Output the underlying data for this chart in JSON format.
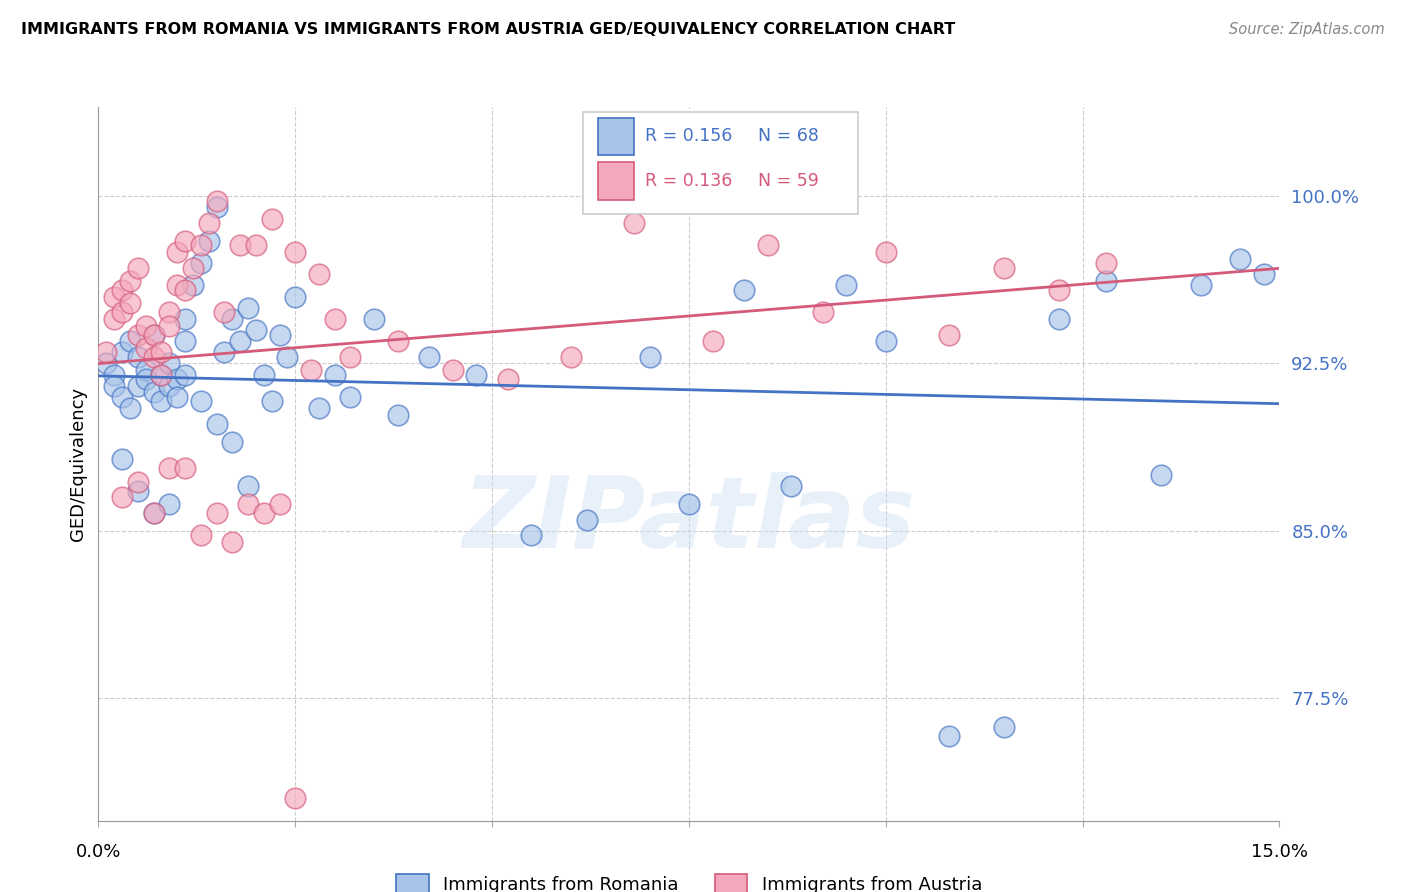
{
  "title": "IMMIGRANTS FROM ROMANIA VS IMMIGRANTS FROM AUSTRIA GED/EQUIVALENCY CORRELATION CHART",
  "source": "Source: ZipAtlas.com",
  "ylabel": "GED/Equivalency",
  "yticks": [
    0.775,
    0.85,
    0.925,
    1.0
  ],
  "ytick_labels": [
    "77.5%",
    "85.0%",
    "92.5%",
    "100.0%"
  ],
  "xlim": [
    0.0,
    0.15
  ],
  "ylim": [
    0.72,
    1.04
  ],
  "romania_color": "#a8c4e8",
  "austria_color": "#f5a8bc",
  "romania_line_color": "#4472c4",
  "austria_line_color": "#d45a7a",
  "watermark": "ZIPatlas",
  "romania_x": [
    0.001,
    0.002,
    0.002,
    0.003,
    0.003,
    0.004,
    0.004,
    0.005,
    0.005,
    0.006,
    0.006,
    0.007,
    0.007,
    0.008,
    0.008,
    0.009,
    0.009,
    0.01,
    0.01,
    0.011,
    0.011,
    0.012,
    0.013,
    0.014,
    0.015,
    0.016,
    0.017,
    0.018,
    0.019,
    0.02,
    0.021,
    0.022,
    0.023,
    0.024,
    0.025,
    0.028,
    0.03,
    0.032,
    0.035,
    0.038,
    0.042,
    0.048,
    0.055,
    0.062,
    0.07,
    0.075,
    0.082,
    0.088,
    0.095,
    0.1,
    0.108,
    0.115,
    0.122,
    0.128,
    0.135,
    0.14,
    0.145,
    0.148,
    0.003,
    0.005,
    0.007,
    0.009,
    0.011,
    0.013,
    0.015,
    0.017,
    0.019
  ],
  "romania_y": [
    0.925,
    0.92,
    0.915,
    0.93,
    0.91,
    0.935,
    0.905,
    0.928,
    0.915,
    0.922,
    0.918,
    0.938,
    0.912,
    0.92,
    0.908,
    0.925,
    0.915,
    0.918,
    0.91,
    0.935,
    0.945,
    0.96,
    0.97,
    0.98,
    0.995,
    0.93,
    0.945,
    0.935,
    0.95,
    0.94,
    0.92,
    0.908,
    0.938,
    0.928,
    0.955,
    0.905,
    0.92,
    0.91,
    0.945,
    0.902,
    0.928,
    0.92,
    0.848,
    0.855,
    0.928,
    0.862,
    0.958,
    0.87,
    0.96,
    0.935,
    0.758,
    0.762,
    0.945,
    0.962,
    0.875,
    0.96,
    0.972,
    0.965,
    0.882,
    0.868,
    0.858,
    0.862,
    0.92,
    0.908,
    0.898,
    0.89,
    0.87
  ],
  "austria_x": [
    0.001,
    0.002,
    0.002,
    0.003,
    0.003,
    0.004,
    0.004,
    0.005,
    0.005,
    0.006,
    0.006,
    0.007,
    0.007,
    0.008,
    0.008,
    0.009,
    0.009,
    0.01,
    0.01,
    0.011,
    0.011,
    0.012,
    0.013,
    0.014,
    0.015,
    0.016,
    0.018,
    0.02,
    0.022,
    0.025,
    0.028,
    0.03,
    0.032,
    0.038,
    0.045,
    0.052,
    0.06,
    0.068,
    0.078,
    0.085,
    0.092,
    0.1,
    0.108,
    0.115,
    0.122,
    0.128,
    0.003,
    0.005,
    0.007,
    0.009,
    0.011,
    0.013,
    0.015,
    0.017,
    0.019,
    0.021,
    0.023,
    0.025,
    0.027
  ],
  "austria_y": [
    0.93,
    0.955,
    0.945,
    0.958,
    0.948,
    0.962,
    0.952,
    0.968,
    0.938,
    0.942,
    0.932,
    0.928,
    0.938,
    0.93,
    0.92,
    0.948,
    0.942,
    0.96,
    0.975,
    0.98,
    0.958,
    0.968,
    0.978,
    0.988,
    0.998,
    0.948,
    0.978,
    0.978,
    0.99,
    0.975,
    0.965,
    0.945,
    0.928,
    0.935,
    0.922,
    0.918,
    0.928,
    0.988,
    0.935,
    0.978,
    0.948,
    0.975,
    0.938,
    0.968,
    0.958,
    0.97,
    0.865,
    0.872,
    0.858,
    0.878,
    0.878,
    0.848,
    0.858,
    0.845,
    0.862,
    0.858,
    0.862,
    0.73,
    0.922
  ]
}
